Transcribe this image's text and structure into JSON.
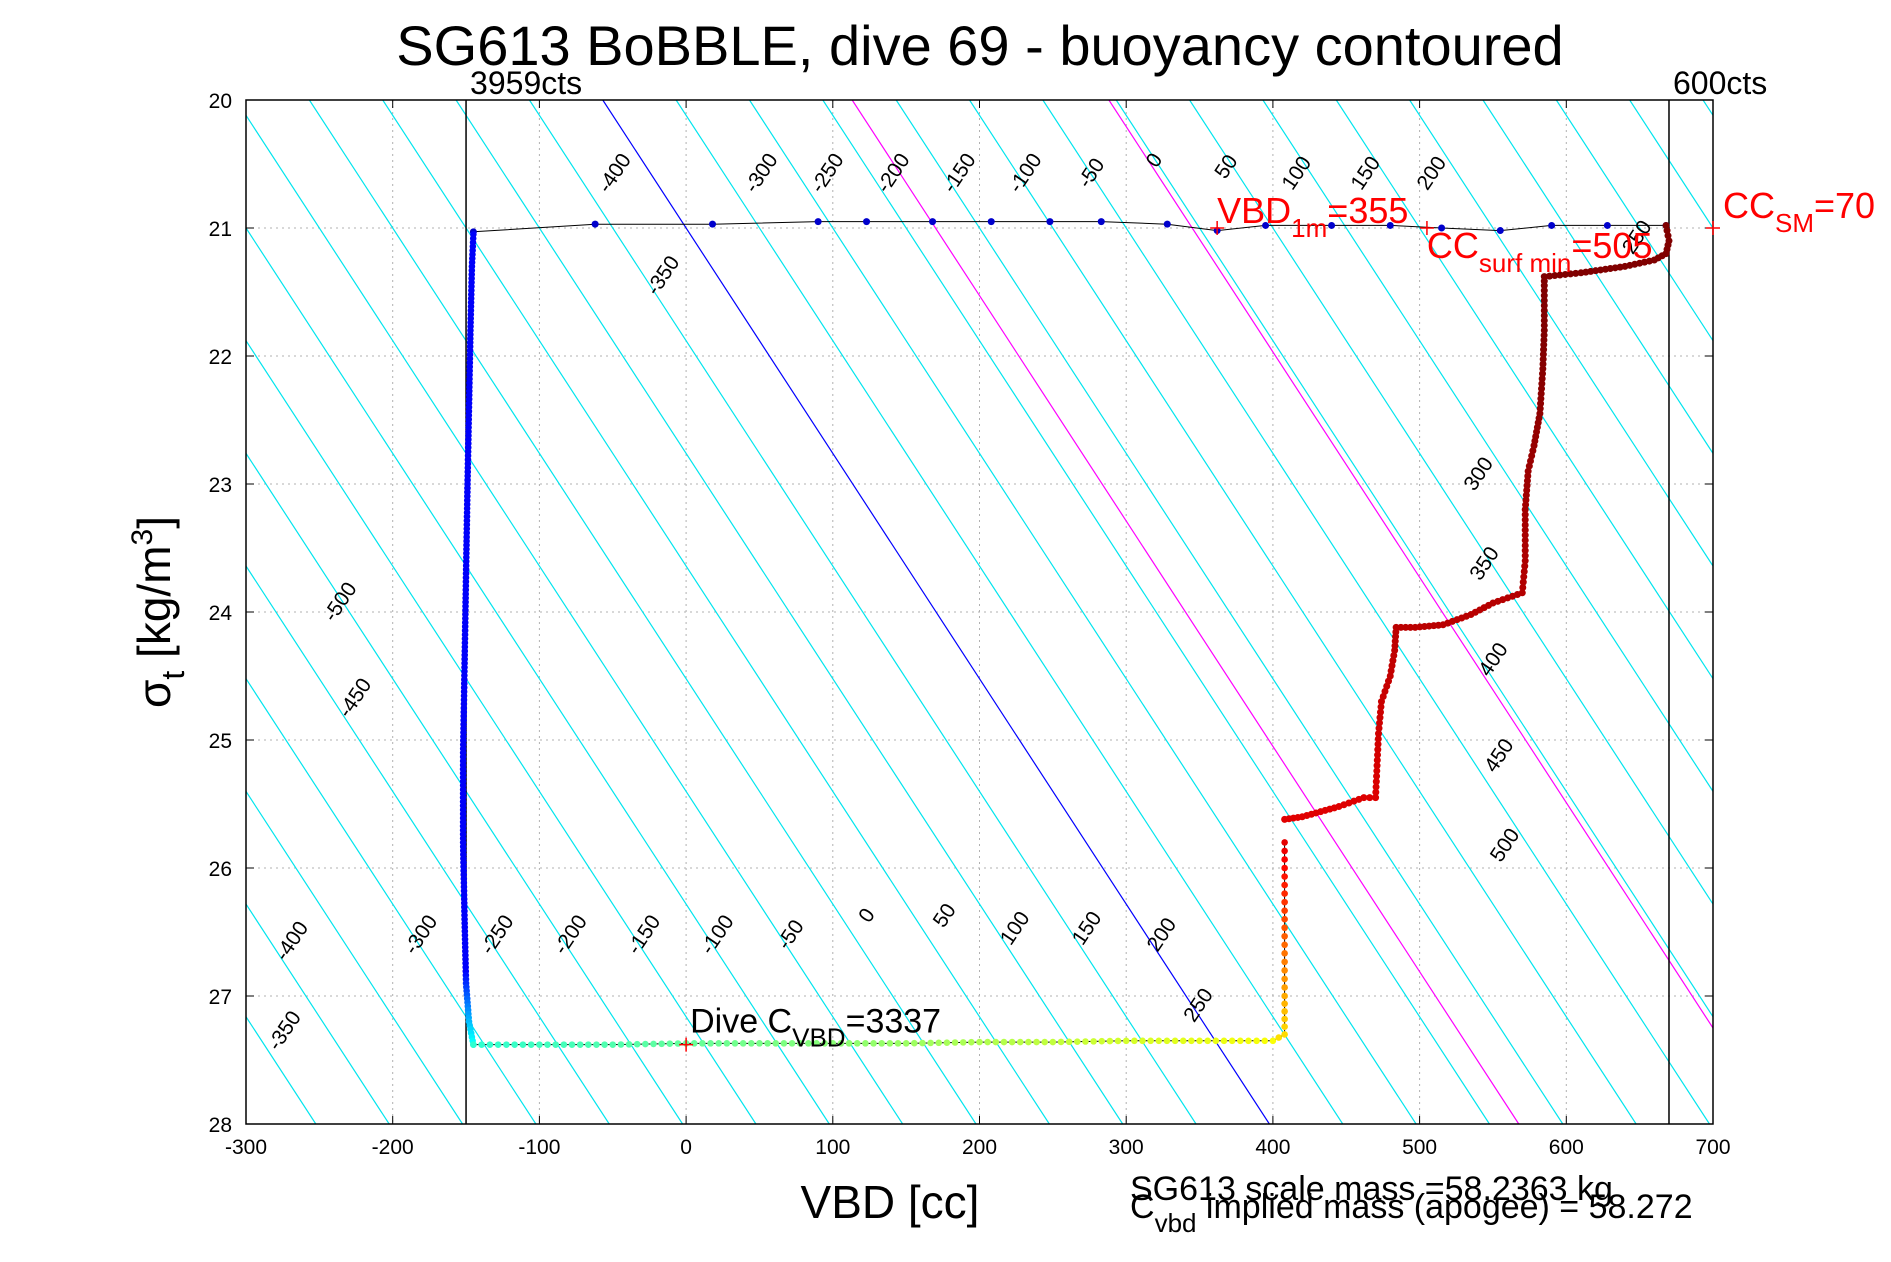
{
  "chart_data": {
    "type": "scatter",
    "title": "SG613 BoBBLE, dive 69 - buoyancy contoured",
    "xlabel": "VBD [cc]",
    "ylabel": "σt [kg/m3]",
    "ylabel_main": "σ",
    "ylabel_sub": "t",
    "ylabel_unit": "[kg/m",
    "ylabel_sup": "3",
    "ylabel_close": "]",
    "xlim": [
      -300,
      700
    ],
    "ylim": [
      20,
      28
    ],
    "y_reversed": true,
    "grid": "dotted",
    "x_ticks": [
      -300,
      -200,
      -100,
      0,
      100,
      200,
      300,
      400,
      500,
      600,
      700
    ],
    "x_tick_labels": [
      "-300",
      "-200",
      "-100",
      "0",
      "100",
      "200",
      "300",
      "400",
      "500",
      "600",
      "700"
    ],
    "y_ticks": [
      20,
      21,
      22,
      23,
      24,
      25,
      26,
      27,
      28
    ],
    "y_tick_labels": [
      "20",
      "21",
      "22",
      "23",
      "24",
      "25",
      "26",
      "27",
      "28"
    ],
    "vertical_limits": [
      {
        "x": -150,
        "label": "3959cts"
      },
      {
        "x": 670,
        "label": "600cts"
      }
    ],
    "contours": {
      "slope_vbd_per_sigma": 56.8,
      "cyan_offsets": [
        -1200,
        -1150,
        -1100,
        -1050,
        -1000,
        -950,
        -900,
        -850,
        -800,
        -750,
        -700,
        -650,
        -600,
        -550,
        -500,
        -450,
        -400,
        -350,
        -300,
        -250,
        -200,
        -150,
        -100,
        -50,
        50,
        100,
        150,
        200,
        250,
        300,
        350,
        400,
        450,
        500,
        550,
        600,
        650,
        700,
        750,
        800
      ],
      "blue_zero_offset": 0,
      "magenta_offsets": [
        170,
        345
      ],
      "colors": {
        "cyan": "#00e5ee",
        "blue": "#0000ff",
        "magenta": "#ff00ff"
      }
    },
    "contour_labels": [
      {
        "text": "-400",
        "x": -45,
        "y": 20.6
      },
      {
        "text": "-300",
        "x": 55,
        "y": 20.6
      },
      {
        "text": "-250",
        "x": 100,
        "y": 20.6
      },
      {
        "text": "-200",
        "x": 145,
        "y": 20.6
      },
      {
        "text": "-150",
        "x": 190,
        "y": 20.6
      },
      {
        "text": "-100",
        "x": 235,
        "y": 20.6
      },
      {
        "text": "-50",
        "x": 280,
        "y": 20.6
      },
      {
        "text": "0",
        "x": 323,
        "y": 20.5
      },
      {
        "text": "50",
        "x": 372,
        "y": 20.55
      },
      {
        "text": "100",
        "x": 420,
        "y": 20.6
      },
      {
        "text": "150",
        "x": 467,
        "y": 20.6
      },
      {
        "text": "200",
        "x": 512,
        "y": 20.6
      },
      {
        "text": "-350",
        "x": -12,
        "y": 21.4
      },
      {
        "text": "250",
        "x": 652,
        "y": 21.1
      },
      {
        "text": "300",
        "x": 544,
        "y": 22.95
      },
      {
        "text": "350",
        "x": 548,
        "y": 23.65
      },
      {
        "text": "400",
        "x": 554,
        "y": 24.4
      },
      {
        "text": "450",
        "x": 558,
        "y": 25.15
      },
      {
        "text": "500",
        "x": 562,
        "y": 25.85
      },
      {
        "text": "-500",
        "x": -232,
        "y": 23.95
      },
      {
        "text": "-450",
        "x": -222,
        "y": 24.7
      },
      {
        "text": "-400",
        "x": -265,
        "y": 26.6
      },
      {
        "text": "-350",
        "x": -270,
        "y": 27.3
      },
      {
        "text": "-300",
        "x": -177,
        "y": 26.55
      },
      {
        "text": "-250",
        "x": -125,
        "y": 26.55
      },
      {
        "text": "-200",
        "x": -75,
        "y": 26.55
      },
      {
        "text": "-150",
        "x": -25,
        "y": 26.55
      },
      {
        "text": "-100",
        "x": 25,
        "y": 26.55
      },
      {
        "text": "-50",
        "x": 75,
        "y": 26.55
      },
      {
        "text": "0",
        "x": 127,
        "y": 26.4
      },
      {
        "text": "50",
        "x": 180,
        "y": 26.4
      },
      {
        "text": "100",
        "x": 228,
        "y": 26.5
      },
      {
        "text": "150",
        "x": 277,
        "y": 26.5
      },
      {
        "text": "200",
        "x": 328,
        "y": 26.55
      },
      {
        "text": "250",
        "x": 353,
        "y": 27.1
      }
    ],
    "dive_top": [
      [
        -145,
        21.03
      ],
      [
        -62,
        20.97
      ],
      [
        18,
        20.97
      ],
      [
        90,
        20.95
      ],
      [
        123,
        20.95
      ],
      [
        168,
        20.95
      ],
      [
        208,
        20.95
      ],
      [
        248,
        20.95
      ],
      [
        283,
        20.95
      ],
      [
        328,
        20.97
      ],
      [
        362,
        21.02
      ],
      [
        395,
        20.98
      ],
      [
        440,
        20.98
      ],
      [
        480,
        20.98
      ],
      [
        515,
        21.0
      ],
      [
        555,
        21.02
      ],
      [
        590,
        20.98
      ],
      [
        628,
        20.98
      ],
      [
        668,
        20.98
      ]
    ],
    "dive_left": [
      [
        -145,
        21.05
      ],
      [
        -146,
        21.3
      ],
      [
        -147,
        21.8
      ],
      [
        -148,
        22.4
      ],
      [
        -149,
        23.0
      ],
      [
        -150,
        23.7
      ],
      [
        -151,
        24.4
      ],
      [
        -152,
        25.1
      ],
      [
        -152,
        25.8
      ],
      [
        -151,
        26.4
      ],
      [
        -150,
        26.9
      ],
      [
        -148,
        27.2
      ],
      [
        -145,
        27.38
      ]
    ],
    "dive_bottom": [
      [
        -145,
        27.38
      ],
      [
        -100,
        27.38
      ],
      [
        -50,
        27.38
      ],
      [
        0,
        27.37
      ],
      [
        50,
        27.37
      ],
      [
        100,
        27.37
      ],
      [
        150,
        27.37
      ],
      [
        200,
        27.36
      ],
      [
        250,
        27.36
      ],
      [
        300,
        27.35
      ],
      [
        350,
        27.35
      ],
      [
        400,
        27.35
      ],
      [
        408,
        27.3
      ],
      [
        408,
        27.0
      ],
      [
        408,
        26.6
      ],
      [
        408,
        26.2
      ],
      [
        408,
        25.8
      ]
    ],
    "climb_path": [
      [
        408,
        25.62
      ],
      [
        420,
        25.6
      ],
      [
        445,
        25.52
      ],
      [
        462,
        25.45
      ],
      [
        470,
        25.45
      ],
      [
        471,
        25.2
      ],
      [
        472,
        24.95
      ],
      [
        474,
        24.7
      ],
      [
        480,
        24.5
      ],
      [
        483,
        24.3
      ],
      [
        484,
        24.12
      ],
      [
        497,
        24.12
      ],
      [
        516,
        24.1
      ],
      [
        535,
        24.02
      ],
      [
        550,
        23.93
      ],
      [
        570,
        23.85
      ],
      [
        572,
        23.6
      ],
      [
        572,
        23.2
      ],
      [
        574,
        22.9
      ],
      [
        578,
        22.7
      ],
      [
        582,
        22.45
      ],
      [
        584,
        22.1
      ],
      [
        585,
        21.8
      ],
      [
        585,
        21.45
      ],
      [
        585,
        21.38
      ],
      [
        610,
        21.35
      ],
      [
        640,
        21.3
      ],
      [
        660,
        21.25
      ],
      [
        668,
        21.2
      ],
      [
        670,
        21.1
      ],
      [
        668,
        20.98
      ]
    ],
    "annotations": {
      "vbd_1m": {
        "main": "VBD",
        "sub": "1m",
        "val": "=355",
        "x": 362,
        "y": 21.0
      },
      "cc_surf_min": {
        "main": "CC",
        "sub": "surf min",
        "val": "=505",
        "x": 505,
        "y": 21.0
      },
      "cc_sm": {
        "main": "CC",
        "sub": "SM",
        "val": "=70",
        "x": 700,
        "y": 21.0
      },
      "dive_c_vbd": {
        "main": "Dive C",
        "sub": "VBD",
        "val": "=3337",
        "x": 0,
        "y": 27.38
      }
    },
    "footer_mass": "SG613 scale mass =58.2363 kg",
    "footer_implied_main": "C",
    "footer_implied_sub": "vbd",
    "footer_implied_rest": " implied mass (apogee) = 58.272"
  }
}
